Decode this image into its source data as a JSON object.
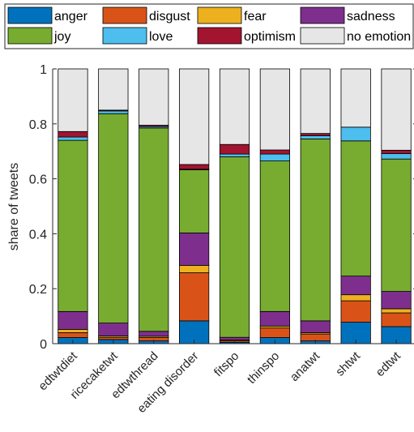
{
  "chart_data": {
    "type": "bar",
    "stacked": true,
    "title": "",
    "xlabel": "",
    "ylabel": "share of tweets",
    "ylim": [
      0,
      1
    ],
    "yticks": [
      "0",
      "0.2",
      "0.4",
      "0.6",
      "0.8",
      "1"
    ],
    "ytick_values": [
      0,
      0.2,
      0.4,
      0.6,
      0.8,
      1
    ],
    "grid": false,
    "legend_position": "top",
    "categories": [
      "edtwtdiet",
      "ricecaketwt",
      "edtwthread",
      "eating disorder",
      "fitspo",
      "thinspo",
      "anatwt",
      "shtwt",
      "edtwt"
    ],
    "series": [
      {
        "name": "anger",
        "color": "#0072BD",
        "values": [
          0.022,
          0.015,
          0.01,
          0.083,
          0.005,
          0.022,
          0.01,
          0.078,
          0.062
        ]
      },
      {
        "name": "disgust",
        "color": "#D95319",
        "values": [
          0.018,
          0.008,
          0.012,
          0.175,
          0.005,
          0.035,
          0.025,
          0.078,
          0.05
        ]
      },
      {
        "name": "fear",
        "color": "#EDB120",
        "values": [
          0.012,
          0.005,
          0.005,
          0.027,
          0.003,
          0.007,
          0.005,
          0.022,
          0.015
        ]
      },
      {
        "name": "sadness",
        "color": "#7E2F8E",
        "values": [
          0.065,
          0.047,
          0.018,
          0.118,
          0.01,
          0.053,
          0.043,
          0.068,
          0.063
        ]
      },
      {
        "name": "joy",
        "color": "#77AC30",
        "values": [
          0.623,
          0.762,
          0.74,
          0.23,
          0.657,
          0.548,
          0.662,
          0.492,
          0.482
        ]
      },
      {
        "name": "love",
        "color": "#4DBEEE",
        "values": [
          0.012,
          0.01,
          0.005,
          0.002,
          0.01,
          0.025,
          0.012,
          0.05,
          0.02
        ]
      },
      {
        "name": "optimism",
        "color": "#A2142F",
        "values": [
          0.02,
          0.003,
          0.005,
          0.017,
          0.035,
          0.015,
          0.008,
          0.0,
          0.012
        ]
      },
      {
        "name": "no emotion",
        "color": "#E6E6E6",
        "values": [
          0.228,
          0.15,
          0.205,
          0.348,
          0.275,
          0.295,
          0.235,
          0.212,
          0.296
        ]
      }
    ]
  }
}
